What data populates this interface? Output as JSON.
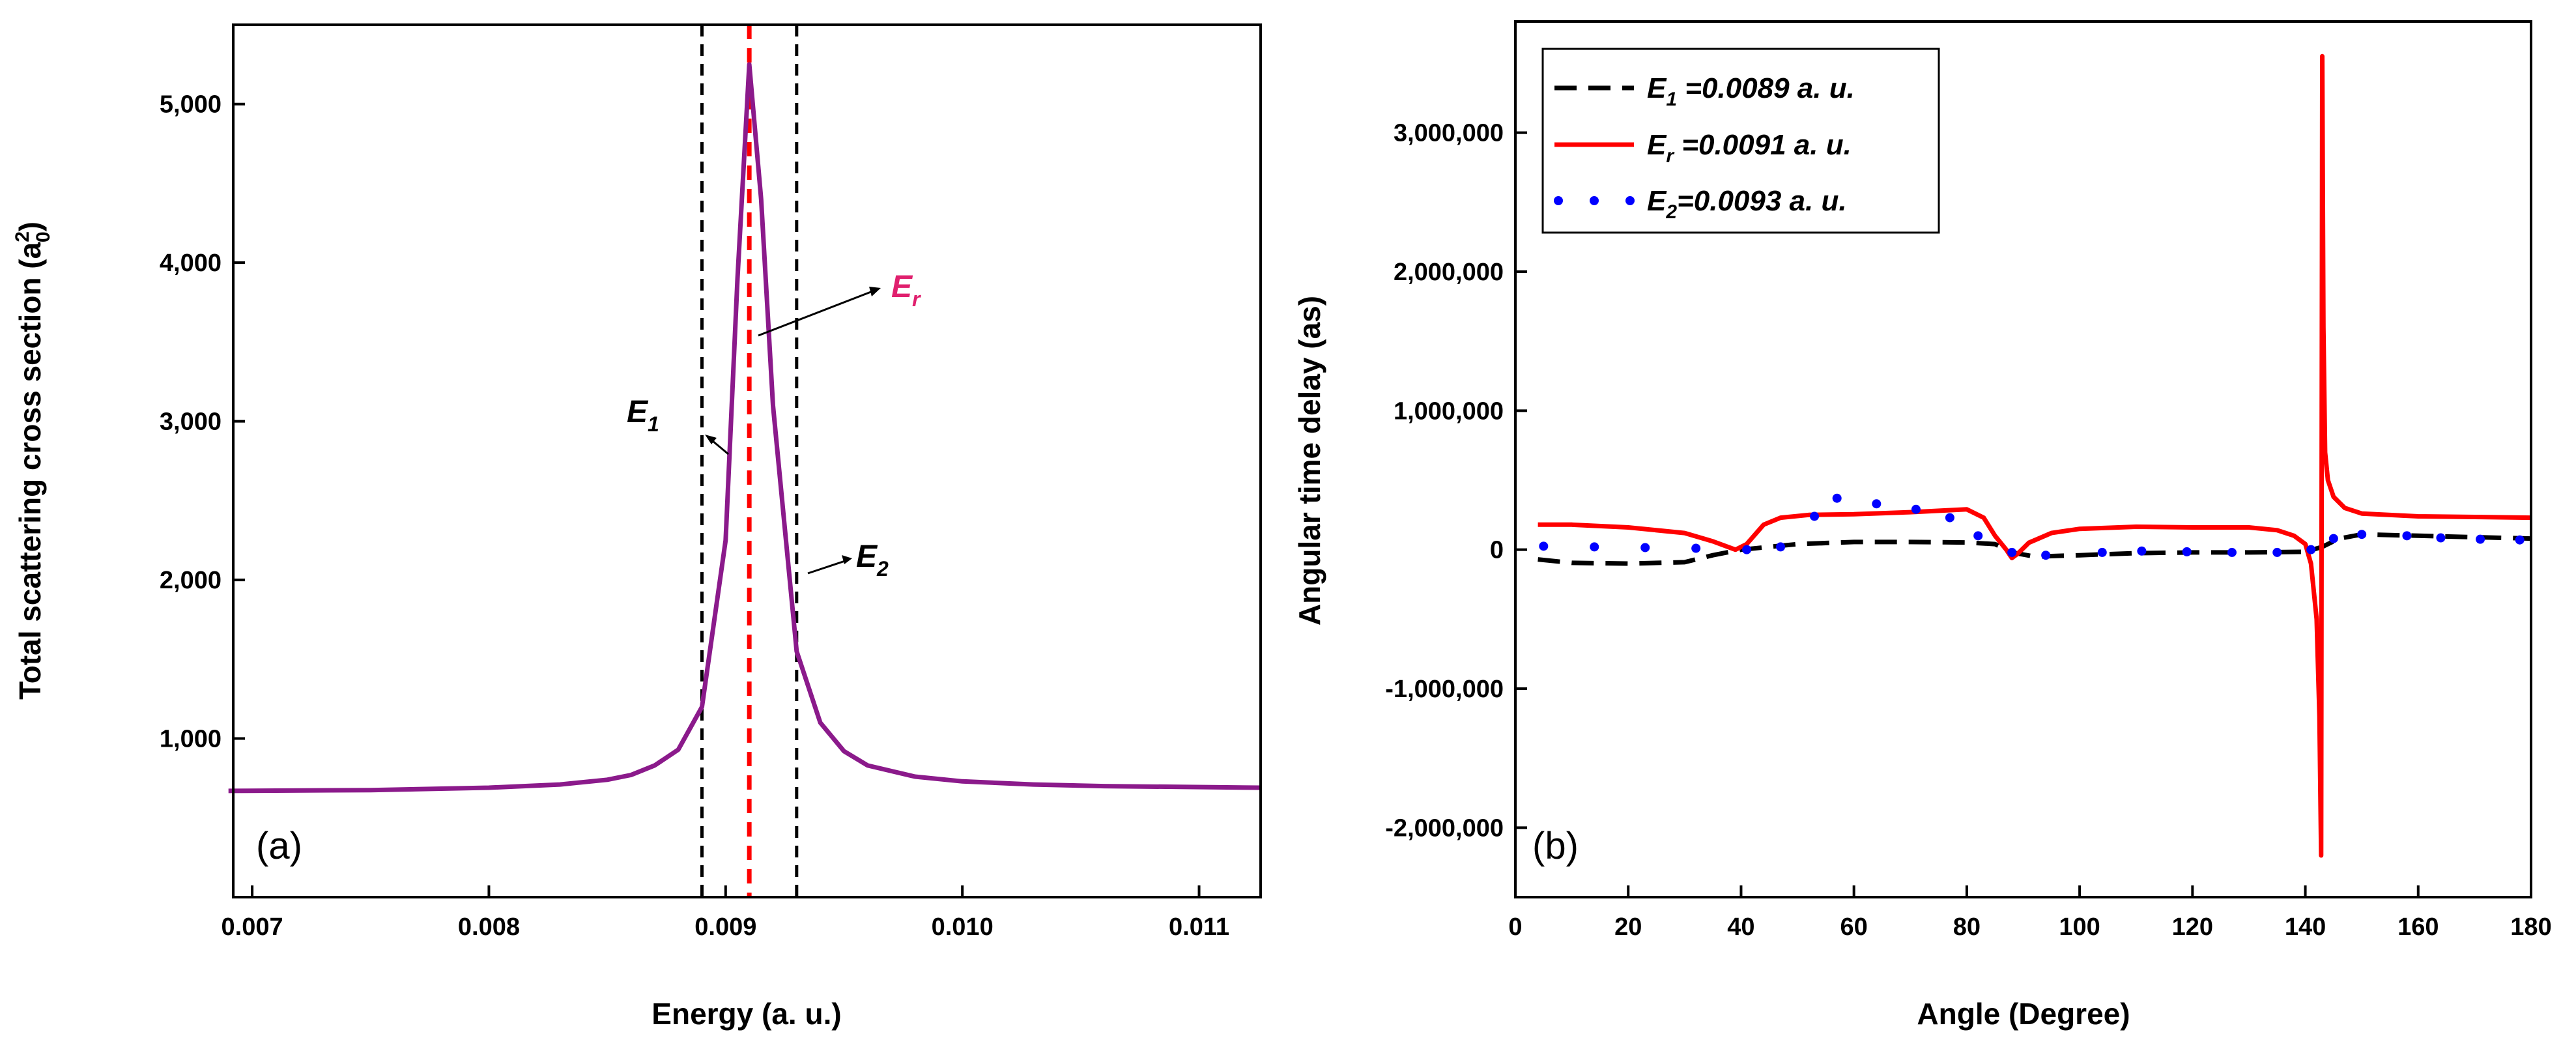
{
  "chart_data": [
    {
      "panel": "(a)",
      "type": "line",
      "xlabel": "Energy (a. u.)",
      "ylabel": "Total scattering cross section (a",
      "ylabel_sub": "0",
      "ylabel_sup": "2",
      "ylabel_end": ")",
      "xlim": [
        0.00692,
        0.01126
      ],
      "ylim": [
        0,
        5500
      ],
      "xticks": [
        0.007,
        0.008,
        0.009,
        0.01,
        0.011
      ],
      "xtick_labels": [
        "0.007",
        "0.008",
        "0.009",
        "0.010",
        "0.011"
      ],
      "yticks": [
        1000,
        2000,
        3000,
        4000,
        5000
      ],
      "ytick_labels": [
        "1,000",
        "2,000",
        "3,000",
        "4,000",
        "5,000"
      ],
      "colors": {
        "curve": "#8B1A8B",
        "resonance": "#FF0000",
        "reference": "#000000",
        "annotation_Er": "#E0206E"
      },
      "series": [
        {
          "name": "Total scattering cross section",
          "x": [
            0.0069,
            0.0075,
            0.008,
            0.0083,
            0.0085,
            0.0086,
            0.0087,
            0.0088,
            0.0089,
            0.009,
            0.00905,
            0.0091,
            0.00915,
            0.0092,
            0.0093,
            0.0094,
            0.0095,
            0.0096,
            0.0098,
            0.01,
            0.0103,
            0.0106,
            0.01126
          ],
          "y": [
            670,
            675,
            690,
            710,
            740,
            770,
            830,
            930,
            1200,
            2250,
            3900,
            5250,
            4400,
            3100,
            1550,
            1100,
            920,
            830,
            760,
            730,
            710,
            700,
            690
          ]
        }
      ],
      "vlines": [
        {
          "label": "E1",
          "x": 0.0089,
          "color": "#000000",
          "style": "dashed"
        },
        {
          "label": "Er",
          "x": 0.0091,
          "color": "#FF0000",
          "style": "dashed"
        },
        {
          "label": "E2",
          "x": 0.0093,
          "color": "#000000",
          "style": "dashed"
        }
      ],
      "annotations": [
        {
          "main": "E",
          "sub": "1",
          "points_to_x": 0.0089
        },
        {
          "main": "E",
          "sub": "r",
          "points_to_x": 0.0091
        },
        {
          "main": "E",
          "sub": "2",
          "points_to_x": 0.0093
        }
      ]
    },
    {
      "panel": "(b)",
      "type": "line",
      "xlabel": "Angle (Degree)",
      "ylabel": "Angular time delay (as)",
      "xlim": [
        0,
        180
      ],
      "ylim": [
        -2500000,
        3800000
      ],
      "xticks": [
        0,
        20,
        40,
        60,
        80,
        100,
        120,
        140,
        160,
        180
      ],
      "xtick_labels": [
        "0",
        "20",
        "40",
        "60",
        "80",
        "100",
        "120",
        "140",
        "160",
        "180"
      ],
      "yticks": [
        -2000000,
        -1000000,
        0,
        1000000,
        2000000,
        3000000
      ],
      "ytick_labels": [
        "-2,000,000",
        "-1,000,000",
        "0",
        "1,000,000",
        "2,000,000",
        "3,000,000"
      ],
      "legend_position": "top-left",
      "series": [
        {
          "name": "E1=0.0089 a. u.",
          "legend_main": "E",
          "legend_sub": "1",
          "legend_rest": " =0.0089 a. u.",
          "style": "dashed",
          "color": "#000000",
          "x": [
            4,
            10,
            20,
            30,
            35,
            40,
            45,
            50,
            60,
            70,
            80,
            85,
            88,
            92,
            100,
            110,
            120,
            130,
            140,
            143,
            146,
            150,
            160,
            170,
            180
          ],
          "y": [
            -70000,
            -95000,
            -100000,
            -90000,
            -40000,
            0,
            20000,
            40000,
            55000,
            55000,
            52000,
            40000,
            -20000,
            -50000,
            -40000,
            -25000,
            -20000,
            -20000,
            -15000,
            20000,
            80000,
            110000,
            100000,
            90000,
            80000
          ]
        },
        {
          "name": "Er=0.0091 a. u.",
          "legend_main": "E",
          "legend_sub": "r",
          "legend_rest": " =0.0091 a. u.",
          "style": "solid",
          "color": "#FF0000",
          "x": [
            4,
            10,
            20,
            30,
            35,
            39,
            41,
            44,
            47,
            52,
            60,
            70,
            80,
            83,
            85,
            87,
            88,
            89,
            91,
            95,
            100,
            110,
            120,
            130,
            135,
            138,
            140,
            141,
            142,
            142.5,
            142.8,
            143,
            143.2,
            143.5,
            144,
            145,
            147,
            150,
            160,
            170,
            180
          ],
          "y": [
            180000,
            180000,
            160000,
            120000,
            60000,
            0,
            40000,
            180000,
            230000,
            250000,
            255000,
            270000,
            290000,
            230000,
            100000,
            0,
            -60000,
            -30000,
            50000,
            120000,
            150000,
            165000,
            160000,
            160000,
            140000,
            100000,
            40000,
            -100000,
            -500000,
            -1200000,
            -2200000,
            3550000,
            1600000,
            700000,
            500000,
            380000,
            300000,
            260000,
            240000,
            235000,
            230000
          ]
        },
        {
          "name": "E2=0.0093 a. u.",
          "legend_main": "E",
          "legend_sub": "2",
          "legend_rest": "=0.0093 a. u.",
          "style": "dotted",
          "color": "#0000FF",
          "x": [
            5,
            14,
            23,
            32,
            41,
            47,
            53,
            57,
            64,
            71,
            77,
            82,
            88,
            94,
            104,
            111,
            119,
            127,
            135,
            141,
            145,
            150,
            158,
            164,
            171,
            178
          ],
          "y": [
            25000,
            20000,
            15000,
            10000,
            0,
            20000,
            240000,
            370000,
            330000,
            290000,
            230000,
            100000,
            -20000,
            -40000,
            -20000,
            -10000,
            -15000,
            -20000,
            -20000,
            0,
            80000,
            110000,
            100000,
            85000,
            75000,
            70000
          ]
        }
      ]
    }
  ]
}
